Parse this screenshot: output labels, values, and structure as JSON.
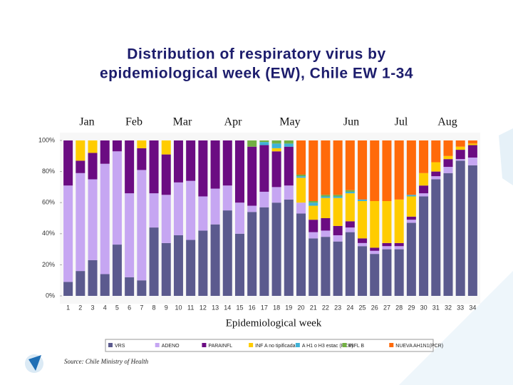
{
  "chart_data": {
    "type": "stacked_bar",
    "title": "Distribution of respiratory virus by",
    "title_line2": "epidemiological week (EW), Chile EW 1-34",
    "month_labels": [
      "Jan",
      "Feb",
      "Mar",
      "Apr",
      "May",
      "Jun",
      "Jul",
      "Aug"
    ],
    "x_label": "Epidemiological week",
    "source": "Source: Chile Ministry of Health",
    "categories": [
      "1",
      "2",
      "3",
      "4",
      "5",
      "6",
      "7",
      "8",
      "9",
      "10",
      "11",
      "12",
      "13",
      "14",
      "15",
      "16",
      "17",
      "18",
      "19",
      "20",
      "21",
      "22",
      "23",
      "24",
      "25",
      "26",
      "27",
      "28",
      "29",
      "30",
      "31",
      "32",
      "33",
      "34"
    ],
    "ylim": [
      0,
      100
    ],
    "yticks": [
      {
        "value": 0,
        "label": "0%"
      },
      {
        "value": 20,
        "label": "20%"
      },
      {
        "value": 40,
        "label": "40%"
      },
      {
        "value": 60,
        "label": "60%"
      },
      {
        "value": 80,
        "label": "80%"
      },
      {
        "value": 100,
        "label": "100%"
      }
    ],
    "series": [
      {
        "name": "VRS",
        "color": "#5b5a8e",
        "values": [
          9,
          16,
          23,
          14,
          33,
          12,
          10,
          44,
          34,
          39,
          36,
          42,
          46,
          55,
          40,
          54,
          57,
          60,
          62,
          53,
          37,
          38,
          35,
          41,
          32,
          27,
          30,
          30,
          47,
          64,
          75,
          79,
          87,
          84
        ]
      },
      {
        "name": "ADENO",
        "color": "#c6a6f2",
        "values": [
          62,
          63,
          52,
          71,
          60,
          54,
          71,
          22,
          31,
          34,
          38,
          22,
          23,
          16,
          20,
          4,
          10,
          10,
          9,
          7,
          4,
          4,
          4,
          3,
          2,
          2,
          2,
          2,
          2,
          2,
          2,
          4,
          1,
          5
        ]
      },
      {
        "name": "PARAINFL",
        "color": "#6b0c82",
        "values": [
          29,
          8,
          17,
          15,
          7,
          34,
          14,
          34,
          26,
          27,
          26,
          36,
          31,
          29,
          40,
          38,
          30,
          23,
          25,
          0,
          8,
          8,
          6,
          4,
          3,
          2,
          2,
          2,
          2,
          5,
          3,
          5,
          6,
          8
        ]
      },
      {
        "name": "INF A no tipificada",
        "color": "#ffcc00",
        "values": [
          0,
          13,
          8,
          0,
          0,
          0,
          5,
          0,
          9,
          0,
          0,
          0,
          0,
          0,
          0,
          0,
          0,
          2,
          0,
          16,
          9,
          13,
          18,
          18,
          24,
          30,
          27,
          28,
          13,
          8,
          6,
          2,
          2,
          1
        ]
      },
      {
        "name": "A H1 o H3 estac (PCR)",
        "color": "#3fb2d6",
        "values": [
          0,
          0,
          0,
          0,
          0,
          0,
          0,
          0,
          0,
          0,
          0,
          0,
          0,
          0,
          0,
          0,
          2,
          3,
          2,
          1,
          2,
          1,
          1,
          1,
          1,
          0,
          0,
          0,
          1,
          0,
          0,
          0,
          0,
          0
        ]
      },
      {
        "name": "INFL B",
        "color": "#72b043",
        "values": [
          0,
          0,
          0,
          0,
          0,
          0,
          0,
          0,
          0,
          0,
          0,
          0,
          0,
          0,
          0,
          4,
          1,
          2,
          2,
          1,
          1,
          1,
          1,
          1,
          0,
          0,
          0,
          0,
          0,
          0,
          0,
          0,
          0,
          0
        ]
      },
      {
        "name": "NUEVA AH1N1(PCR)",
        "color": "#ff6a0a",
        "values": [
          0,
          0,
          0,
          0,
          0,
          0,
          0,
          0,
          0,
          0,
          0,
          0,
          0,
          0,
          0,
          0,
          0,
          0,
          0,
          22,
          39,
          35,
          35,
          32,
          38,
          39,
          39,
          38,
          35,
          21,
          14,
          10,
          4,
          2
        ]
      }
    ]
  }
}
